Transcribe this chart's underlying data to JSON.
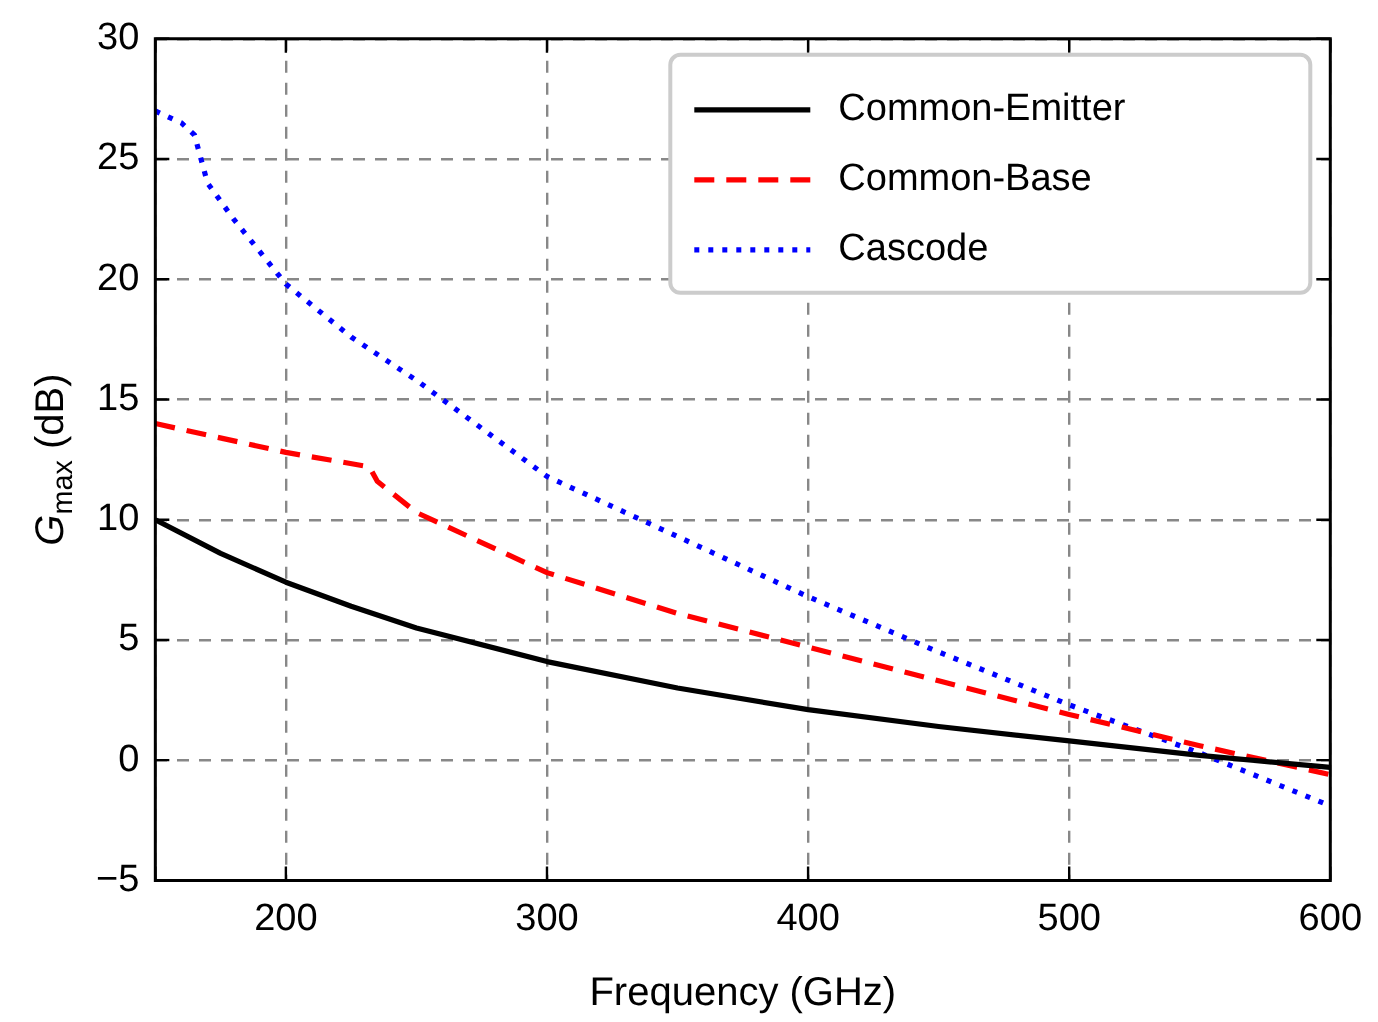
{
  "chart_data": {
    "type": "line",
    "xlabel": "Frequency (GHz)",
    "ylabel": "G$_{max}$ (dB)",
    "xlim": [
      150,
      600
    ],
    "xticks": [
      {
        "value": 150,
        "label": null
      },
      200,
      300,
      400,
      500,
      600
    ],
    "ylim": [
      -5,
      30
    ],
    "yticks": [
      {
        "value": -5,
        "label": "−5"
      },
      0,
      5,
      10,
      15,
      20,
      25,
      30
    ],
    "grid": true,
    "legend": "top right",
    "marker": "none",
    "series": [
      {
        "name": "Common-Emitter",
        "color": "#000000",
        "line_style": "solid",
        "x": [
          150,
          175,
          200,
          225,
          250,
          300,
          350,
          400,
          450,
          500,
          550,
          600
        ],
        "values": [
          10,
          8.6,
          7.4,
          6.4,
          5.5,
          4.1,
          3.0,
          2.1,
          1.4,
          0.8,
          0.2,
          -0.3
        ]
      },
      {
        "name": "Common-Base",
        "color": "#ff0000",
        "line_style": "dashed",
        "x": [
          150,
          200,
          232,
          235,
          250,
          300,
          350,
          400,
          450,
          500,
          550,
          600
        ],
        "values": [
          14,
          12.8,
          12.2,
          11.6,
          10.3,
          7.8,
          6.1,
          4.7,
          3.3,
          1.9,
          0.6,
          -0.6
        ]
      },
      {
        "name": "Cascode",
        "color": "#0000ff",
        "line_style": "dotted",
        "x": [
          150,
          160,
          165,
          170,
          180,
          200,
          225,
          250,
          300,
          350,
          400,
          450,
          500,
          550,
          600
        ],
        "values": [
          27,
          26.5,
          26,
          24,
          22.5,
          19.8,
          17.6,
          15.8,
          11.8,
          9.3,
          6.8,
          4.5,
          2.3,
          0.3,
          -1.9
        ]
      }
    ]
  }
}
